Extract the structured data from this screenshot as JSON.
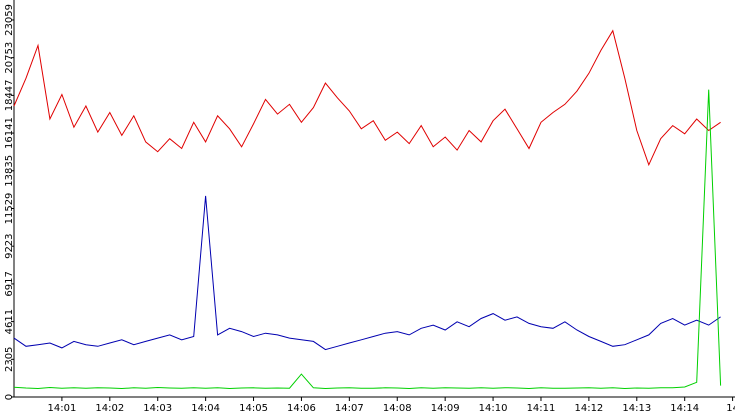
{
  "chart_data": {
    "type": "line",
    "x": [
      0,
      0.25,
      0.5,
      0.75,
      1,
      1.25,
      1.5,
      1.75,
      2,
      2.25,
      2.5,
      2.75,
      3,
      3.25,
      3.5,
      3.75,
      4,
      4.25,
      4.5,
      4.75,
      5,
      5.25,
      5.5,
      5.75,
      6,
      6.25,
      6.5,
      6.75,
      7,
      7.25,
      7.5,
      7.75,
      8,
      8.25,
      8.5,
      8.75,
      9,
      9.25,
      9.5,
      9.75,
      10,
      10.25,
      10.5,
      10.75,
      11,
      11.25,
      11.5,
      11.75,
      12,
      12.25,
      12.5,
      12.75,
      13,
      13.25,
      13.5,
      13.75,
      14,
      14.25,
      14.5,
      14.75
    ],
    "series": [
      {
        "color": "#e00000",
        "values": [
          17800,
          19500,
          21500,
          17000,
          18500,
          16500,
          17800,
          16200,
          17400,
          16000,
          17200,
          15600,
          15000,
          15800,
          15200,
          16800,
          15600,
          17200,
          16400,
          15300,
          16700,
          18200,
          17300,
          17900,
          16800,
          17700,
          19200,
          18300,
          17500,
          16400,
          16900,
          15700,
          16200,
          15500,
          16600,
          15300,
          15900,
          15100,
          16300,
          15600,
          16900,
          17600,
          16400,
          15200,
          16800,
          17400,
          17900,
          18700,
          19800,
          21200,
          22400,
          19500,
          16300,
          14200,
          15800,
          16600,
          16100,
          17000,
          16300,
          16800
        ]
      },
      {
        "color": "#0000b0",
        "values": [
          3600,
          3100,
          3200,
          3300,
          3000,
          3400,
          3200,
          3100,
          3300,
          3500,
          3200,
          3400,
          3600,
          3800,
          3500,
          3700,
          12300,
          3800,
          4200,
          4000,
          3700,
          3900,
          3800,
          3600,
          3500,
          3400,
          2900,
          3100,
          3300,
          3500,
          3700,
          3900,
          4000,
          3800,
          4200,
          4400,
          4100,
          4600,
          4300,
          4800,
          5100,
          4700,
          4900,
          4500,
          4300,
          4200,
          4600,
          4100,
          3700,
          3400,
          3100,
          3200,
          3500,
          3800,
          4500,
          4800,
          4400,
          4700,
          4400,
          4900
        ]
      },
      {
        "color": "#00d000",
        "values": [
          600,
          550,
          520,
          580,
          540,
          560,
          530,
          570,
          550,
          520,
          560,
          540,
          580,
          550,
          530,
          560,
          540,
          570,
          520,
          550,
          560,
          530,
          550,
          540,
          1400,
          560,
          520,
          550,
          570,
          540,
          530,
          560,
          550,
          520,
          560,
          540,
          570,
          550,
          530,
          560,
          540,
          570,
          550,
          520,
          560,
          540,
          530,
          550,
          570,
          540,
          560,
          520,
          550,
          540,
          570,
          560,
          610,
          900,
          18800,
          700
        ]
      }
    ],
    "xlim": [
      0,
      15.05
    ],
    "ylim": [
      0,
      24280
    ],
    "xticks": [
      {
        "value": 1,
        "label": "14:01"
      },
      {
        "value": 2,
        "label": "14:02"
      },
      {
        "value": 3,
        "label": "14:03"
      },
      {
        "value": 4,
        "label": "14:04"
      },
      {
        "value": 5,
        "label": "14:05"
      },
      {
        "value": 6,
        "label": "14:06"
      },
      {
        "value": 7,
        "label": "14:07"
      },
      {
        "value": 8,
        "label": "14:08"
      },
      {
        "value": 9,
        "label": "14:09"
      },
      {
        "value": 10,
        "label": "14:10"
      },
      {
        "value": 11,
        "label": "14:11"
      },
      {
        "value": 12,
        "label": "14:12"
      },
      {
        "value": 13,
        "label": "14:13"
      },
      {
        "value": 14,
        "label": "14:14"
      },
      {
        "value": 15,
        "label": "14"
      }
    ],
    "yticks": [
      0,
      2305,
      4611,
      6917,
      9223,
      11529,
      13835,
      16141,
      18447,
      20753,
      23059
    ],
    "grid": false
  }
}
